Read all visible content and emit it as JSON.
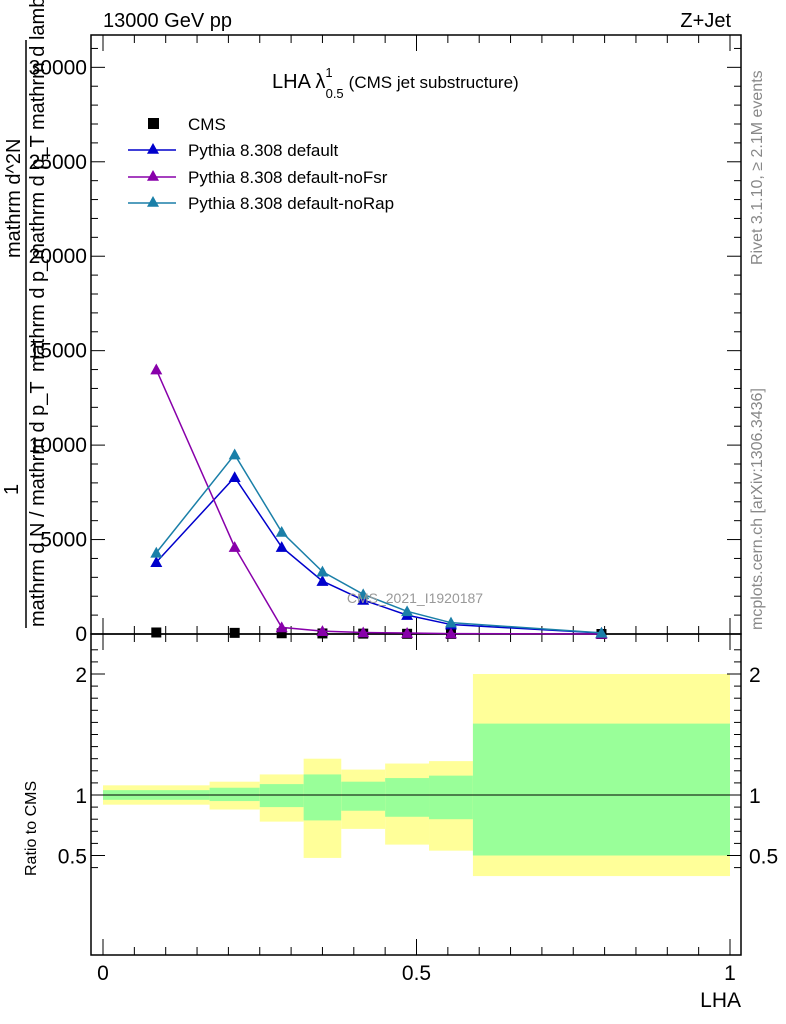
{
  "header": {
    "left": "13000 GeV pp",
    "right": "Z+Jet"
  },
  "side": {
    "rivet": "Rivet 3.1.10, ≥ 2.1M events",
    "mcplots": "mcplots.cern.ch [arXiv:1306.3436]"
  },
  "chart_data": [
    {
      "type": "line",
      "title": "LHA λ¹₀.₅ (CMS jet substructure)",
      "title_main": "LHA λ",
      "title_sup": "1",
      "title_sub": "0.5",
      "title_rest": "(CMS jet substructure)",
      "watermark": "CMS_2021_I1920187",
      "ylabel_lines": [
        "1",
        "mathrm d N / mathrm d p_mathrm d p_T",
        "mathrm d^2N",
        "mathrm d p_T mathrm d lambda"
      ],
      "ylabel_top": "mathrm d^2N",
      "ylabel_mid": "mathrm d p_mathrm d p_T mathrm d lambda",
      "ylabel_one": "1",
      "ylabel_bottom": "mathrm d N / mathrm d p_T",
      "xlim": [
        0,
        1
      ],
      "ylim": [
        0,
        31500
      ],
      "yticks": [
        0,
        5000,
        10000,
        15000,
        20000,
        25000,
        30000
      ],
      "ytick_labels": [
        "0",
        "5000",
        "10000",
        "15000",
        "20000",
        "25000",
        "30000"
      ],
      "legend": "top-left",
      "series": [
        {
          "name": "CMS",
          "color": "#000000",
          "marker": "square",
          "x": [
            0.085,
            0.21,
            0.285,
            0.35,
            0.415,
            0.485,
            0.555,
            0.795
          ],
          "y": [
            80,
            60,
            40,
            30,
            20,
            10,
            5,
            0
          ]
        },
        {
          "name": "Pythia 8.308 default",
          "color": "#0000cc",
          "marker": "triangle",
          "x": [
            0.085,
            0.21,
            0.285,
            0.35,
            0.415,
            0.485,
            0.555,
            0.795
          ],
          "y": [
            3800,
            8300,
            4600,
            2800,
            1800,
            1000,
            500,
            50
          ]
        },
        {
          "name": "Pythia 8.308 default-noFsr",
          "color": "#8800aa",
          "marker": "triangle",
          "x": [
            0.085,
            0.21,
            0.285,
            0.35,
            0.415,
            0.485,
            0.555,
            0.795
          ],
          "y": [
            14000,
            4600,
            350,
            150,
            80,
            50,
            20,
            0
          ]
        },
        {
          "name": "Pythia 8.308 default-noRap",
          "color": "#1a7fa8",
          "marker": "triangle",
          "x": [
            0.085,
            0.21,
            0.285,
            0.35,
            0.415,
            0.485,
            0.555,
            0.795
          ],
          "y": [
            4300,
            9500,
            5400,
            3300,
            2100,
            1200,
            600,
            60
          ]
        }
      ]
    },
    {
      "type": "area",
      "ylabel": "Ratio to CMS",
      "xlabel": "LHA",
      "xlim": [
        0,
        1
      ],
      "ylim": [
        0.33,
        2.25
      ],
      "yticks": [
        0.5,
        1,
        2
      ],
      "ytick_labels": [
        "0.5",
        "1",
        "2"
      ],
      "xticks": [
        0,
        0.5,
        1
      ],
      "xtick_labels": [
        "0",
        "0.5",
        "1"
      ],
      "bins": [
        {
          "x0": 0.0,
          "x1": 0.17,
          "stat_lo": 0.96,
          "stat_hi": 1.04,
          "tot_lo": 0.92,
          "tot_hi": 1.08
        },
        {
          "x0": 0.17,
          "x1": 0.25,
          "stat_lo": 0.95,
          "stat_hi": 1.06,
          "tot_lo": 0.88,
          "tot_hi": 1.11
        },
        {
          "x0": 0.25,
          "x1": 0.32,
          "stat_lo": 0.9,
          "stat_hi": 1.09,
          "tot_lo": 0.78,
          "tot_hi": 1.17
        },
        {
          "x0": 0.32,
          "x1": 0.38,
          "stat_lo": 0.79,
          "stat_hi": 1.17,
          "tot_lo": 0.48,
          "tot_hi": 1.3
        },
        {
          "x0": 0.38,
          "x1": 0.45,
          "stat_lo": 0.87,
          "stat_hi": 1.11,
          "tot_lo": 0.72,
          "tot_hi": 1.21
        },
        {
          "x0": 0.45,
          "x1": 0.52,
          "stat_lo": 0.82,
          "stat_hi": 1.14,
          "tot_lo": 0.59,
          "tot_hi": 1.26
        },
        {
          "x0": 0.52,
          "x1": 0.59,
          "stat_lo": 0.8,
          "stat_hi": 1.16,
          "tot_lo": 0.54,
          "tot_hi": 1.28
        },
        {
          "x0": 0.59,
          "x1": 1.0,
          "stat_lo": 0.5,
          "stat_hi": 1.59,
          "tot_lo": 0.33,
          "tot_hi": 2.0
        }
      ],
      "colors": {
        "stat": "#99ff99",
        "total": "#ffff99"
      }
    }
  ]
}
